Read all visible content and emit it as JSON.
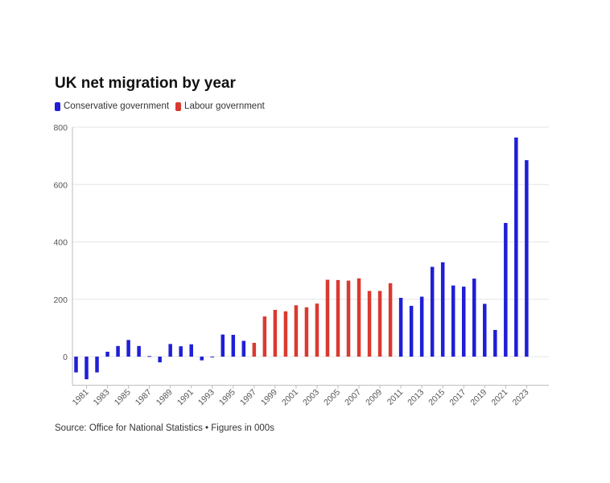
{
  "title": "UK net migration by year",
  "legend": [
    {
      "label": "Conservative government",
      "color": "#1f1fd6"
    },
    {
      "label": "Labour government",
      "color": "#d93a30"
    }
  ],
  "source": "Source: Office for National Statistics • Figures in 000s",
  "colors": {
    "conservative": "#1f1fd6",
    "labour": "#d93a30",
    "grid": "#e6e6e6",
    "axis": "#bbbbbb"
  },
  "chart_data": {
    "type": "bar",
    "title": "UK net migration by year",
    "xlabel": "",
    "ylabel": "",
    "ylim": [
      -100,
      800
    ],
    "yticks": [
      0,
      200,
      400,
      600,
      800
    ],
    "grid": true,
    "legend_position": "top-left",
    "categories": [
      1980,
      1981,
      1982,
      1983,
      1984,
      1985,
      1986,
      1987,
      1988,
      1989,
      1990,
      1991,
      1992,
      1993,
      1994,
      1995,
      1996,
      1997,
      1998,
      1999,
      2000,
      2001,
      2002,
      2003,
      2004,
      2005,
      2006,
      2007,
      2008,
      2009,
      2010,
      2011,
      2012,
      2013,
      2014,
      2015,
      2016,
      2017,
      2018,
      2019,
      2020,
      2021,
      2022,
      2023
    ],
    "x_tick_labels": [
      "1981",
      "1983",
      "1985",
      "1987",
      "1989",
      "1991",
      "1993",
      "1995",
      "1997",
      "1999",
      "2001",
      "2003",
      "2005",
      "2007",
      "2009",
      "2011",
      "2013",
      "2015",
      "2017",
      "2019",
      "2021",
      "2023"
    ],
    "series": [
      {
        "name": "Conservative government",
        "color": "#1f1fd6",
        "values": [
          -55,
          -79,
          -55,
          17,
          37,
          58,
          37,
          2,
          -20,
          44,
          36,
          43,
          -13,
          -1,
          77,
          76,
          55,
          null,
          null,
          null,
          null,
          null,
          null,
          null,
          null,
          null,
          null,
          null,
          null,
          null,
          null,
          205,
          177,
          209,
          313,
          329,
          248,
          244,
          272,
          184,
          93,
          466,
          764,
          685
        ]
      },
      {
        "name": "Labour government",
        "color": "#d93a30",
        "values": [
          null,
          null,
          null,
          null,
          null,
          null,
          null,
          null,
          null,
          null,
          null,
          null,
          null,
          null,
          null,
          null,
          null,
          48,
          140,
          163,
          158,
          179,
          172,
          185,
          268,
          267,
          265,
          273,
          229,
          229,
          256,
          null,
          null,
          null,
          null,
          null,
          null,
          null,
          null,
          null,
          null,
          null,
          null,
          null
        ]
      }
    ]
  }
}
